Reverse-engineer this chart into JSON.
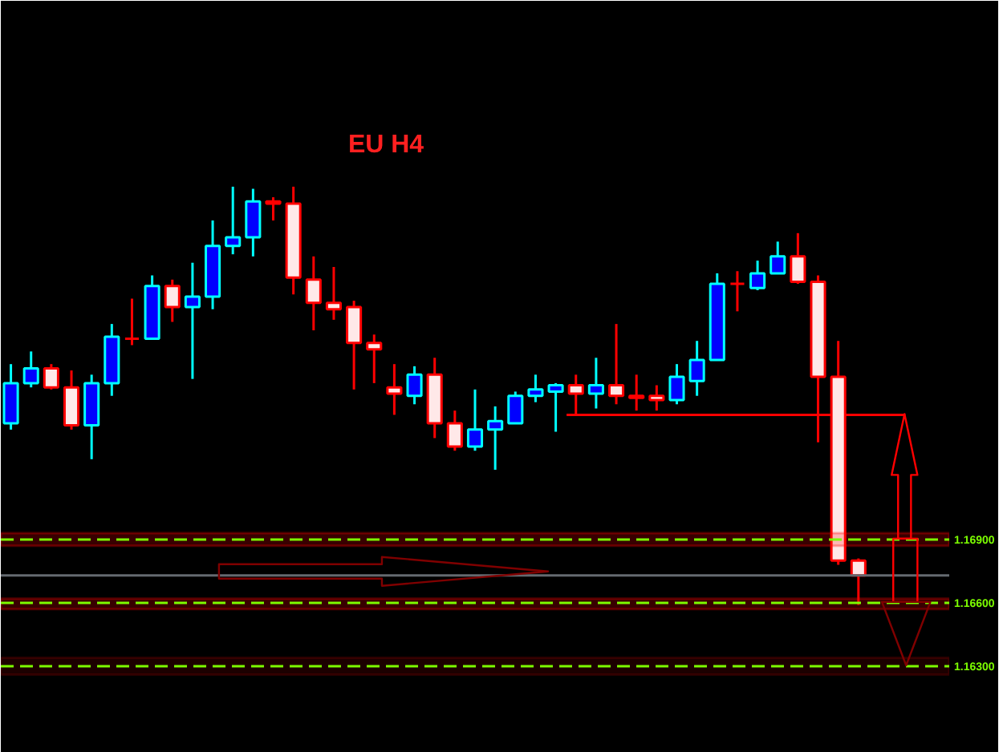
{
  "chart_data": {
    "type": "candlestick",
    "title": "EU H4",
    "categories": [
      null,
      null,
      null,
      null,
      null,
      null,
      null,
      null,
      null,
      null,
      null,
      null,
      null,
      null,
      null,
      null,
      null,
      null,
      null,
      null,
      null,
      null,
      null,
      null,
      null,
      null,
      null,
      null,
      null,
      null,
      null,
      null,
      null,
      null,
      null,
      null,
      null,
      null,
      null,
      null,
      null,
      null,
      null,
      null,
      null,
      null,
      null
    ],
    "ohlc": [
      [
        1.1745,
        1.1773,
        1.1742,
        1.1764
      ],
      [
        1.1764,
        1.1779,
        1.1762,
        1.1771
      ],
      [
        1.1771,
        1.1773,
        1.1761,
        1.1762
      ],
      [
        1.1762,
        1.177,
        1.1742,
        1.1744
      ],
      [
        1.1744,
        1.1768,
        1.1728,
        1.1764
      ],
      [
        1.1764,
        1.1792,
        1.1758,
        1.1786
      ],
      [
        1.1785,
        1.1804,
        1.1782,
        1.1785
      ],
      [
        1.1785,
        1.1815,
        1.1785,
        1.181
      ],
      [
        1.181,
        1.1813,
        1.1793,
        1.18
      ],
      [
        1.18,
        1.1821,
        1.1766,
        1.1805
      ],
      [
        1.1805,
        1.1841,
        1.1799,
        1.1829
      ],
      [
        1.1829,
        1.1857,
        1.1825,
        1.1833
      ],
      [
        1.1833,
        1.1856,
        1.1824,
        1.185
      ],
      [
        1.185,
        1.1852,
        1.1841,
        1.1849
      ],
      [
        1.1849,
        1.1857,
        1.1806,
        1.1814
      ],
      [
        1.1813,
        1.1824,
        1.1789,
        1.1802
      ],
      [
        1.1802,
        1.1819,
        1.1794,
        1.1799
      ],
      [
        1.18,
        1.1803,
        1.1761,
        1.1783
      ],
      [
        1.1783,
        1.1787,
        1.1764,
        1.178
      ],
      [
        1.1762,
        1.1773,
        1.1749,
        1.1759
      ],
      [
        1.1758,
        1.1772,
        1.1754,
        1.1768
      ],
      [
        1.1768,
        1.1776,
        1.1738,
        1.1745
      ],
      [
        1.1745,
        1.1751,
        1.1732,
        1.1734
      ],
      [
        1.1734,
        1.1761,
        1.1732,
        1.1742
      ],
      [
        1.1742,
        1.1753,
        1.1723,
        1.1746
      ],
      [
        1.1745,
        1.176,
        1.1745,
        1.1758
      ],
      [
        1.1758,
        1.1768,
        1.1755,
        1.1761
      ],
      [
        1.176,
        1.1764,
        1.1741,
        1.1763
      ],
      [
        1.1763,
        1.1768,
        1.1749,
        1.1759
      ],
      [
        1.1759,
        1.1776,
        1.1752,
        1.1763
      ],
      [
        1.1763,
        1.1792,
        1.1754,
        1.1758
      ],
      [
        1.1758,
        1.1768,
        1.1751,
        1.1757
      ],
      [
        1.1758,
        1.1763,
        1.1751,
        1.1756
      ],
      [
        1.1756,
        1.1773,
        1.1754,
        1.1767
      ],
      [
        1.1765,
        1.1784,
        1.1758,
        1.1775
      ],
      [
        1.1775,
        1.1816,
        1.1775,
        1.1811
      ],
      [
        1.1811,
        1.1817,
        1.1798,
        1.1811
      ],
      [
        1.1809,
        1.1822,
        1.1808,
        1.1816
      ],
      [
        1.1816,
        1.1831,
        1.1816,
        1.1824
      ],
      [
        1.1824,
        1.1835,
        1.1811,
        1.1812
      ],
      [
        1.1812,
        1.1815,
        1.1736,
        1.1767
      ],
      [
        1.1767,
        1.1784,
        1.1678,
        1.168
      ],
      [
        1.168,
        1.1681,
        1.1659,
        1.1673
      ],
      null,
      null,
      null,
      null
    ],
    "colors": [
      "#0000ff",
      "#0000ff",
      "#ffe8e8",
      "#ffe8e8",
      "#0000ff",
      "#0000ff",
      "#ff0000",
      "#0000ff",
      "#ffe8e8",
      "#0000ff",
      "#0000ff",
      "#0000ff",
      "#0000ff",
      "#ffe8e8",
      "#ffe8e8",
      "#ffe8e8",
      "#ffe8e8",
      "#ffe8e8",
      "#ffe8e8",
      "#ffe8e8",
      "#0000ff",
      "#ffe8e8",
      "#ffe8e8",
      "#0000ff",
      "#0000ff",
      "#0000ff",
      "#0000ff",
      "#0000ff",
      "#ffe8e8",
      "#0000ff",
      "#ffe8e8",
      "#ffe8e8",
      "#ffe8e8",
      "#0000ff",
      "#0000ff",
      "#0000ff",
      "#ff0000",
      "#0000ff",
      "#0000ff",
      "#ffe8e8",
      "#ffe8e8",
      "#ffe8e8",
      "#ffe8e8",
      null,
      null,
      null,
      null
    ],
    "ylim": [
      1.1589,
      1.1945
    ],
    "yticks": [
      {
        "value": 1.163,
        "label": "1.16300"
      },
      {
        "value": 1.166,
        "label": "1.16600"
      },
      {
        "value": 1.169,
        "label": "1.16900"
      }
    ],
    "tick_labels": "y",
    "ref_lines": [
      {
        "axis": "y",
        "value": 1.169,
        "color": "#7cfc00",
        "line_style": "dashed"
      },
      {
        "axis": "y",
        "value": 1.166,
        "color": "#7cfc00",
        "line_style": "dashed"
      },
      {
        "axis": "y",
        "value": 1.163,
        "color": "#7cfc00",
        "line_style": "dashed"
      },
      {
        "axis": "y",
        "value": 1.1673,
        "color": "#646a70"
      },
      {
        "axis": "y",
        "value": 1.1749,
        "color": "#ff0000"
      }
    ],
    "bands": [
      {
        "axis": "y",
        "from": 1.1687,
        "to": 1.1693,
        "color": "#ff0000"
      },
      {
        "axis": "y",
        "from": 1.1657,
        "to": 1.1662,
        "color": "#ff0000"
      },
      {
        "axis": "y",
        "from": 1.1626,
        "to": 1.1634,
        "color": "#800000"
      }
    ]
  }
}
